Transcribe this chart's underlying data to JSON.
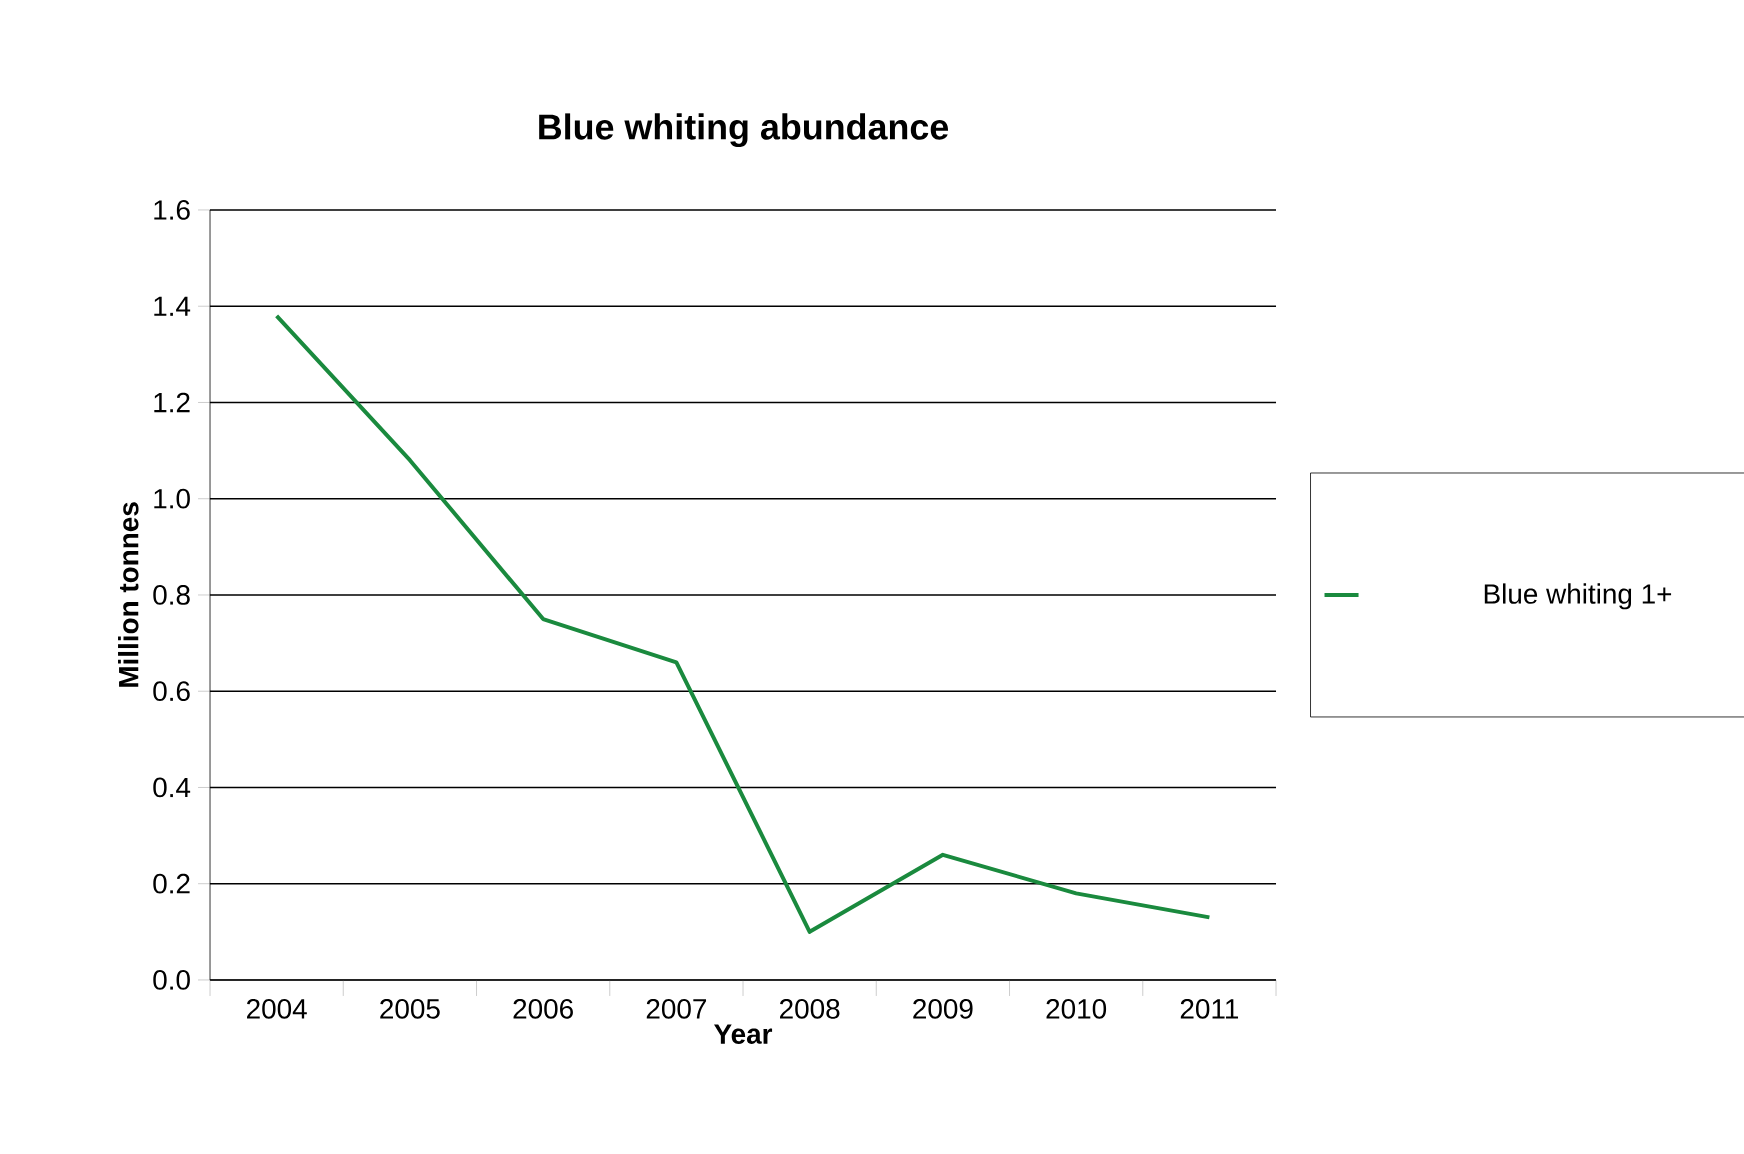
{
  "chart_data": {
    "type": "line",
    "title": "Blue whiting abundance",
    "xlabel": "Year",
    "ylabel": "Million tonnes",
    "categories": [
      "2004",
      "2005",
      "2006",
      "2007",
      "2008",
      "2009",
      "2010",
      "2011"
    ],
    "series": [
      {
        "name": "Blue whiting 1+",
        "color": "#1a8a3e",
        "values": [
          1.38,
          1.08,
          0.75,
          0.66,
          0.1,
          0.26,
          0.18,
          0.13
        ]
      }
    ],
    "ylim": [
      0,
      1.6
    ],
    "yticks": [
      {
        "value": 0,
        "label": "0.0"
      },
      {
        "value": 0.2,
        "label": "0.2"
      },
      {
        "value": 0.4,
        "label": "0.4"
      },
      {
        "value": 0.6,
        "label": "0.6"
      },
      {
        "value": 0.8,
        "label": "0.8"
      },
      {
        "value": 1.0,
        "label": "1.0"
      },
      {
        "value": 1.2,
        "label": "1.2"
      },
      {
        "value": 1.4,
        "label": "1.4"
      },
      {
        "value": 1.6,
        "label": "1.6"
      }
    ],
    "grid": "y",
    "legend": "right",
    "marker": "none",
    "line_style": "solid"
  }
}
